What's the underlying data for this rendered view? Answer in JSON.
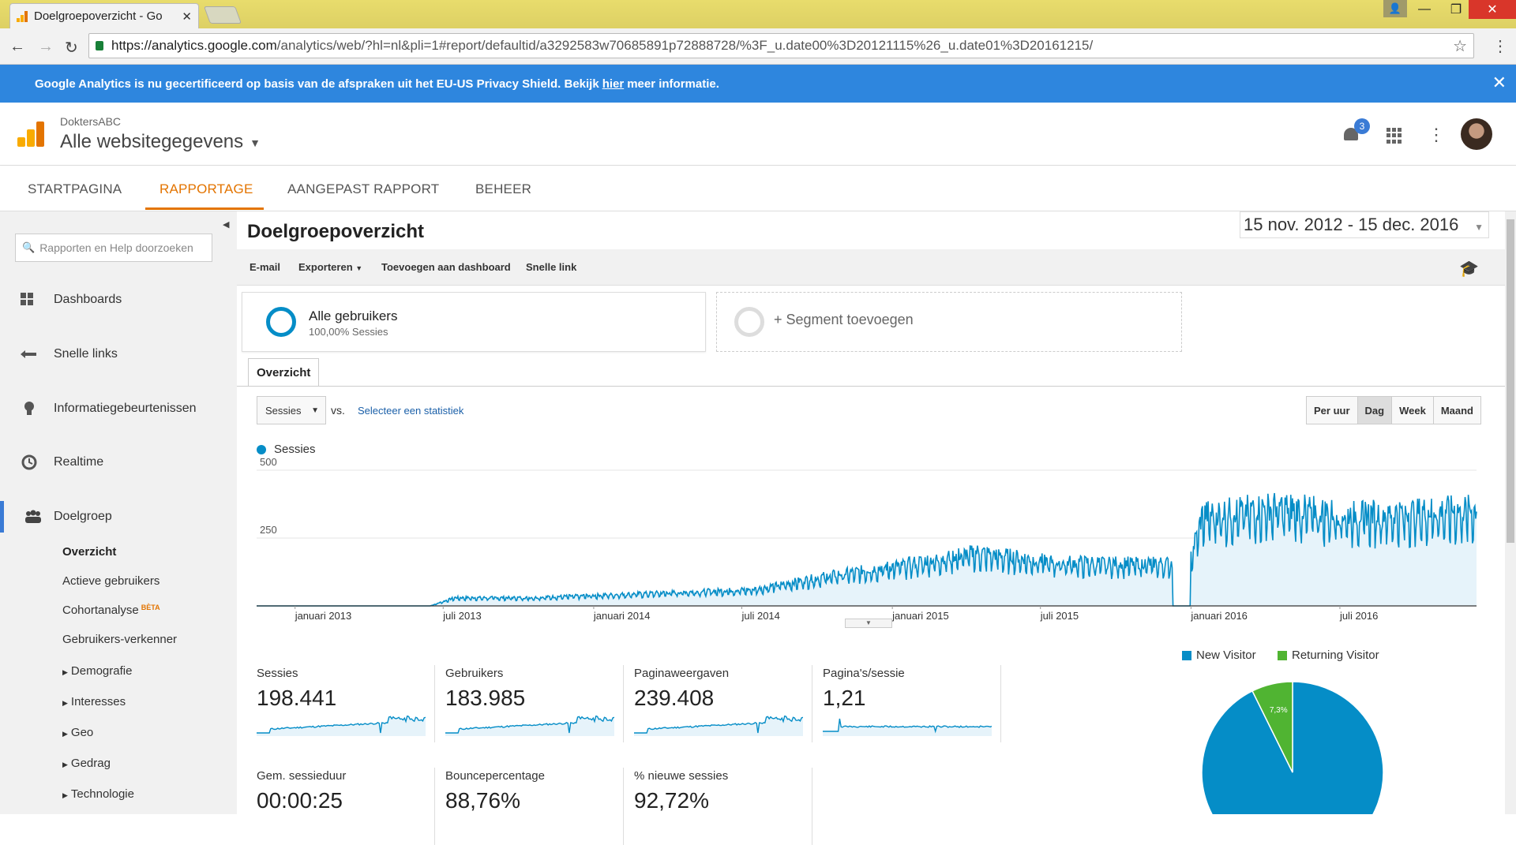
{
  "browser": {
    "tab_title": "Doelgroepoverzicht - Go",
    "url_host": "https://analytics.google.com",
    "url_path": "/analytics/web/?hl=nl&pli=1#report/defaultid/a3292583w70685891p72888728/%3F_u.date00%3D20121115%26_u.date01%3D20161215/"
  },
  "banner": {
    "text_before": "Google Analytics is nu gecertificeerd op basis van de afspraken uit het EU-US Privacy Shield. Bekijk",
    "link": "hier",
    "text_after": "meer informatie."
  },
  "header": {
    "account": "DoktersABC",
    "property": "Alle websitegegevens",
    "notification_count": "3"
  },
  "nav": {
    "tabs": [
      "STARTPAGINA",
      "RAPPORTAGE",
      "AANGEPAST RAPPORT",
      "BEHEER"
    ],
    "active": "RAPPORTAGE"
  },
  "sidebar": {
    "search_placeholder": "Rapporten en Help doorzoeken",
    "items": [
      "Dashboards",
      "Snelle links",
      "Informatiegebeurtenissen",
      "Realtime",
      "Doelgroep"
    ],
    "subitems": [
      "Overzicht",
      "Actieve gebruikers",
      "Cohortanalyse",
      "Gebruikers-verkenner"
    ],
    "beta": "BÈTA",
    "expandable": [
      "Demografie",
      "Interesses",
      "Geo",
      "Gedrag",
      "Technologie"
    ]
  },
  "report": {
    "title": "Doelgroepoverzicht",
    "date_range": "15 nov. 2012 - 15 dec. 2016",
    "toolbar": [
      "E-mail",
      "Exporteren",
      "Toevoegen aan dashboard",
      "Snelle link"
    ],
    "segment_name": "Alle gebruikers",
    "segment_sub": "100,00% Sessies",
    "segment_add": "+ Segment toevoegen",
    "subtab": "Overzicht",
    "metric": "Sessies",
    "vs": "vs.",
    "select_stat": "Selecteer een statistiek",
    "granularity": [
      "Per uur",
      "Dag",
      "Week",
      "Maand"
    ],
    "granularity_active": "Dag",
    "legend": "Sessies"
  },
  "chart_data": {
    "type": "area",
    "series": [
      {
        "name": "Sessies",
        "color": "#058dc7"
      }
    ],
    "x_start": "2012-11-15",
    "x_end": "2016-12-15",
    "ylim": [
      0,
      500
    ],
    "y_ticks": [
      "500",
      "250"
    ],
    "x_ticks": [
      "januari 2013",
      "juli 2013",
      "januari 2014",
      "juli 2014",
      "januari 2015",
      "juli 2015",
      "januari 2016",
      "juli 2016"
    ],
    "monthly_sessions_estimate": [
      {
        "month": "2012-11",
        "value": 0
      },
      {
        "month": "2013-06",
        "value": 0
      },
      {
        "month": "2013-07",
        "value": 30
      },
      {
        "month": "2013-10",
        "value": 30
      },
      {
        "month": "2014-01",
        "value": 40
      },
      {
        "month": "2014-07",
        "value": 60
      },
      {
        "month": "2014-10",
        "value": 110
      },
      {
        "month": "2015-01",
        "value": 150
      },
      {
        "month": "2015-04",
        "value": 195
      },
      {
        "month": "2015-07",
        "value": 160
      },
      {
        "month": "2015-10",
        "value": 155
      },
      {
        "month": "2015-12",
        "value": 0
      },
      {
        "month": "2016-01",
        "value": 330
      },
      {
        "month": "2016-04",
        "value": 360
      },
      {
        "month": "2016-07",
        "value": 330
      },
      {
        "month": "2016-12",
        "value": 350
      }
    ],
    "grid": true,
    "legend": "top-left"
  },
  "scorecards": [
    {
      "label": "Sessies",
      "value": "198.441"
    },
    {
      "label": "Gebruikers",
      "value": "183.985"
    },
    {
      "label": "Paginaweergaven",
      "value": "239.408"
    },
    {
      "label": "Pagina's/sessie",
      "value": "1,21"
    },
    {
      "label": "Gem. sessieduur",
      "value": "00:00:25"
    },
    {
      "label": "Bouncepercentage",
      "value": "88,76%"
    },
    {
      "label": "% nieuwe sessies",
      "value": "92,72%"
    }
  ],
  "pie": {
    "legend": [
      "New Visitor",
      "Returning Visitor"
    ],
    "colors": [
      "#058dc7",
      "#50b432"
    ],
    "values": [
      92.7,
      7.3
    ],
    "returning_label": "7,3%"
  }
}
